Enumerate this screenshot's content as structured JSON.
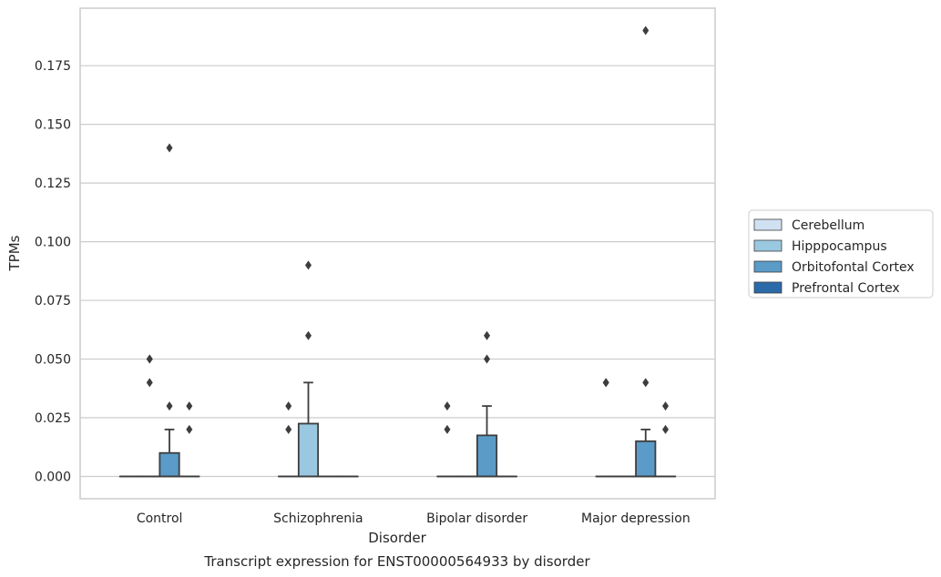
{
  "chart_data": {
    "type": "box",
    "title": "Transcript expression for ENST00000564933 by disorder",
    "xlabel": "Disorder",
    "ylabel": "TPMs",
    "categories": [
      "Control",
      "Schizophrenia",
      "Bipolar disorder",
      "Major depression"
    ],
    "y_ticks": [
      "0.000",
      "0.025",
      "0.050",
      "0.075",
      "0.100",
      "0.125",
      "0.150",
      "0.175"
    ],
    "ylim": [
      -0.0095,
      0.1995
    ],
    "grid": "horizontal",
    "legend_position": "right",
    "series": [
      {
        "name": "Cerebellum",
        "color": "#d0e1f2",
        "boxes": [
          {
            "q1": 0,
            "median": 0,
            "q3": 0,
            "whisker_low": 0,
            "whisker_high": 0,
            "outliers": []
          },
          {
            "q1": 0,
            "median": 0,
            "q3": 0,
            "whisker_low": 0,
            "whisker_high": 0,
            "outliers": []
          },
          {
            "q1": 0,
            "median": 0,
            "q3": 0,
            "whisker_low": 0,
            "whisker_high": 0,
            "outliers": []
          },
          {
            "q1": 0,
            "median": 0,
            "q3": 0,
            "whisker_low": 0,
            "whisker_high": 0,
            "outliers": []
          }
        ]
      },
      {
        "name": "Hipppocampus",
        "color": "#9ac8e0",
        "boxes": [
          {
            "q1": 0,
            "median": 0,
            "q3": 0,
            "whisker_low": 0,
            "whisker_high": 0,
            "outliers": [
              0.04,
              0.05,
              0.05
            ]
          },
          {
            "q1": 0,
            "median": 0,
            "q3": 0.0225,
            "whisker_low": 0,
            "whisker_high": 0.04,
            "outliers": [
              0.09,
              0.06
            ]
          },
          {
            "q1": 0,
            "median": 0,
            "q3": 0,
            "whisker_low": 0,
            "whisker_high": 0,
            "outliers": []
          },
          {
            "q1": 0,
            "median": 0,
            "q3": 0,
            "whisker_low": 0,
            "whisker_high": 0,
            "outliers": []
          }
        ]
      },
      {
        "name": "Orbitofontal Cortex",
        "color": "#5a9bc8",
        "boxes": [
          {
            "q1": 0,
            "median": 0,
            "q3": 0.01,
            "whisker_low": 0,
            "whisker_high": 0.02,
            "outliers": [
              0.14,
              0.03
            ]
          },
          {
            "q1": 0,
            "median": 0,
            "q3": 0,
            "whisker_low": 0,
            "whisker_high": 0,
            "outliers": []
          },
          {
            "q1": 0,
            "median": 0,
            "q3": 0.0175,
            "whisker_low": 0,
            "whisker_high": 0.03,
            "outliers": [
              0.05,
              0.06
            ]
          },
          {
            "q1": 0,
            "median": 0,
            "q3": 0.015,
            "whisker_low": 0,
            "whisker_high": 0.02,
            "outliers": [
              0.19,
              0.04
            ]
          }
        ]
      },
      {
        "name": "Prefrontal Cortex",
        "color": "#2b6aa9",
        "boxes": [
          {
            "q1": 0,
            "median": 0,
            "q3": 0,
            "whisker_low": 0,
            "whisker_high": 0,
            "outliers": [
              0.03,
              0.02
            ]
          },
          {
            "q1": 0,
            "median": 0,
            "q3": 0,
            "whisker_low": 0,
            "whisker_high": 0,
            "outliers": []
          },
          {
            "q1": 0,
            "median": 0,
            "q3": 0,
            "whisker_low": 0,
            "whisker_high": 0,
            "outliers": []
          },
          {
            "q1": 0,
            "median": 0,
            "q3": 0,
            "whisker_low": 0,
            "whisker_high": 0,
            "outliers": [
              0.03,
              0.02
            ]
          }
        ]
      },
      {
        "name": "",
        "color": "#2b6aa9",
        "boxes": []
      }
    ],
    "extra_outliers": [
      {
        "category_index": 1,
        "series_index": 0,
        "values": [
          0.03,
          0.02
        ]
      },
      {
        "category_index": 2,
        "series_index": 0,
        "values": [
          0.03,
          0.02
        ]
      },
      {
        "category_index": 3,
        "series_index": 0,
        "values": [
          0.04,
          0.04
        ]
      }
    ]
  }
}
